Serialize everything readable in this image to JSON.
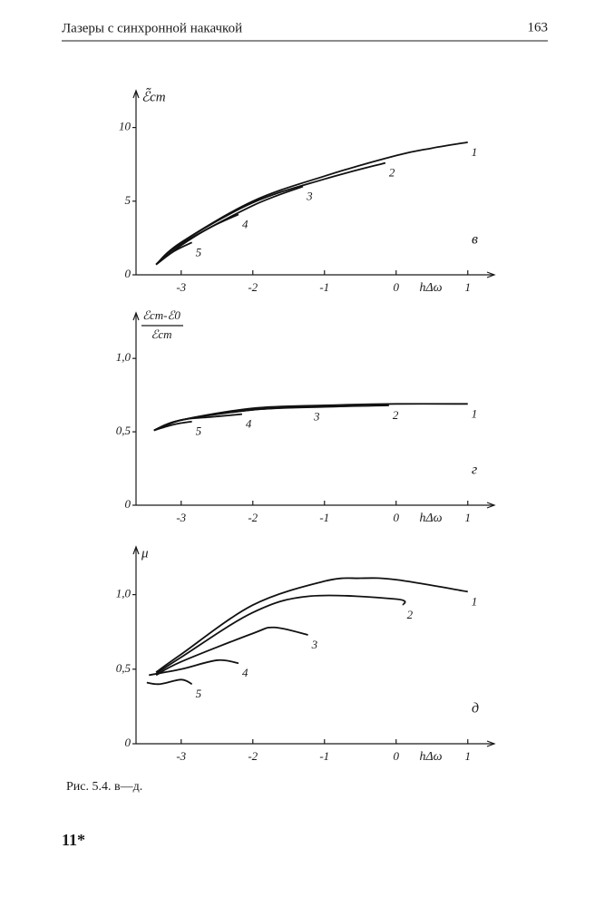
{
  "header": {
    "title": "Лазеры с синхронной накачкой",
    "page": "163"
  },
  "chart_data": [
    {
      "type": "line",
      "panel": "в",
      "xlabel": "hΔω",
      "ylabel": "ℰ̃ст",
      "xlim": [
        -3.63,
        1.37
      ],
      "ylim": [
        0,
        12.5
      ],
      "xticks": [
        -3,
        -2,
        -1,
        0,
        1
      ],
      "yticks": [
        0,
        5,
        10
      ],
      "series": [
        {
          "name": "1",
          "color": "#111111",
          "x": [
            -3.35,
            -3,
            -2,
            -1,
            0,
            0.5,
            1
          ],
          "values": [
            0.7,
            2.2,
            5.0,
            6.7,
            8.1,
            8.6,
            9.0
          ]
        },
        {
          "name": "2",
          "color": "#111111",
          "x": [
            -3.35,
            -3,
            -2,
            -1,
            -0.15
          ],
          "values": [
            0.7,
            2.2,
            4.9,
            6.5,
            7.6
          ]
        },
        {
          "name": "3",
          "color": "#111111",
          "x": [
            -3.35,
            -3,
            -2,
            -1.3
          ],
          "values": [
            0.7,
            2.1,
            4.7,
            6.0
          ]
        },
        {
          "name": "4",
          "color": "#111111",
          "x": [
            -3.35,
            -3,
            -2.6,
            -2.2
          ],
          "values": [
            0.7,
            2.0,
            3.2,
            4.1
          ]
        },
        {
          "name": "5",
          "color": "#111111",
          "x": [
            -3.35,
            -3.1,
            -2.85
          ],
          "values": [
            0.7,
            1.6,
            2.2
          ]
        }
      ]
    },
    {
      "type": "line",
      "panel": "г",
      "xlabel": "hΔω",
      "ylabel": {
        "numerator": "ℰст-ℰ0",
        "denominator": "ℰст"
      },
      "xlim": [
        -3.63,
        1.37
      ],
      "ylim": [
        0,
        1.31
      ],
      "xticks": [
        -3,
        -2,
        -1,
        0,
        1
      ],
      "yticks": [
        0,
        {
          "value": 0.5,
          "label": "0,5"
        },
        {
          "value": 1.0,
          "label": "1,0"
        }
      ],
      "series": [
        {
          "name": "1",
          "color": "#111111",
          "x": [
            -3.38,
            -3,
            -2,
            -1,
            0,
            1
          ],
          "values": [
            0.51,
            0.58,
            0.66,
            0.68,
            0.69,
            0.69
          ]
        },
        {
          "name": "2",
          "color": "#111111",
          "x": [
            -3.38,
            -3,
            -2,
            -1,
            -0.1
          ],
          "values": [
            0.51,
            0.58,
            0.65,
            0.67,
            0.68
          ]
        },
        {
          "name": "3",
          "color": "#111111",
          "x": [
            -3.38,
            -3,
            -2,
            -1.2
          ],
          "values": [
            0.51,
            0.58,
            0.65,
            0.67
          ]
        },
        {
          "name": "4",
          "color": "#111111",
          "x": [
            -3.38,
            -3,
            -2.6,
            -2.15
          ],
          "values": [
            0.51,
            0.58,
            0.6,
            0.62
          ]
        },
        {
          "name": "5",
          "color": "#111111",
          "x": [
            -3.38,
            -3.1,
            -2.85
          ],
          "values": [
            0.51,
            0.55,
            0.57
          ]
        }
      ]
    },
    {
      "type": "line",
      "panel": "д",
      "xlabel": "hΔω",
      "ylabel": "μ",
      "xlim": [
        -3.63,
        1.37
      ],
      "ylim": [
        0,
        1.32
      ],
      "xticks": [
        -3,
        -2,
        -1,
        0,
        1
      ],
      "yticks": [
        0,
        {
          "value": 0.5,
          "label": "0,5"
        },
        {
          "value": 1.0,
          "label": "1,0"
        }
      ],
      "series": [
        {
          "name": "1",
          "color": "#111111",
          "x": [
            -3.35,
            -3,
            -2,
            -1,
            -0.5,
            0,
            1
          ],
          "values": [
            0.48,
            0.6,
            0.93,
            1.09,
            1.11,
            1.1,
            1.02
          ]
        },
        {
          "name": "2",
          "color": "#111111",
          "x": [
            -3.35,
            -3,
            -2,
            -1.2,
            0,
            0.1
          ],
          "values": [
            0.47,
            0.58,
            0.88,
            0.99,
            0.97,
            0.93
          ]
        },
        {
          "name": "3",
          "color": "#111111",
          "x": [
            -3.35,
            -3,
            -2,
            -1.7,
            -1.23
          ],
          "values": [
            0.46,
            0.55,
            0.74,
            0.78,
            0.73
          ]
        },
        {
          "name": "4",
          "color": "#111111",
          "x": [
            -3.45,
            -3,
            -2.5,
            -2.2
          ],
          "values": [
            0.46,
            0.5,
            0.56,
            0.54
          ]
        },
        {
          "name": "5",
          "color": "#111111",
          "x": [
            -3.48,
            -3.3,
            -3,
            -2.85
          ],
          "values": [
            0.41,
            0.4,
            0.43,
            0.4
          ]
        }
      ]
    }
  ],
  "caption": "Рис. 5.4. в—д.",
  "footer": "11*"
}
